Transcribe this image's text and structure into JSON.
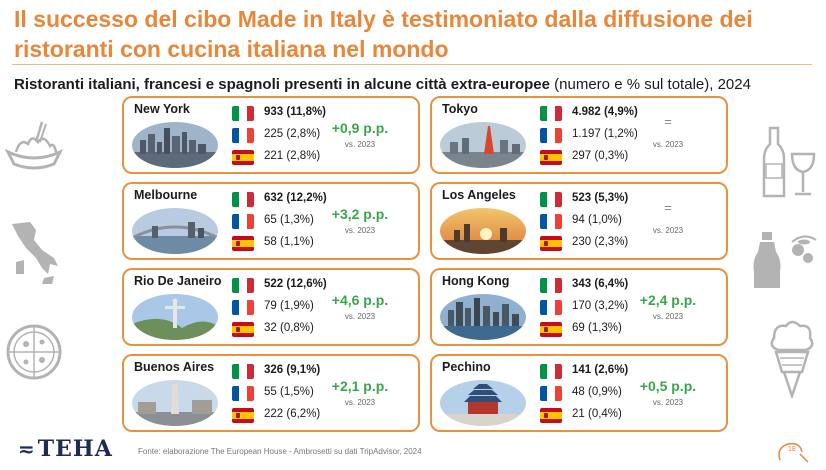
{
  "header": {
    "title": "Il successo del cibo Made in Italy è testimoniato dalla diffusione dei ristoranti con cucina italiana nel mondo",
    "subtitle_bold": "Ristoranti italiani, francesi e spagnoli presenti in alcune città extra-europee",
    "subtitle_rest": " (numero e % sul totale), 2024"
  },
  "vs_label": "vs. 2023",
  "colors": {
    "accent": "#e8873a",
    "positive": "#3aa64a",
    "neutral": "#888888"
  },
  "cities": [
    {
      "name": "New York",
      "it": "933 (11,8%)",
      "fr": "225 (2,8%)",
      "es": "221 (2,8%)",
      "delta": "+0,9 p.p.",
      "photo": "skyline"
    },
    {
      "name": "Melbourne",
      "it": "632 (12,2%)",
      "fr": "65 (1,3%)",
      "es": "58 (1,1%)",
      "delta": "+3,2 p.p.",
      "photo": "harbour"
    },
    {
      "name": "Rio De Janeiro",
      "it": "522 (12,6%)",
      "fr": "79 (1,9%)",
      "es": "32 (0,8%)",
      "delta": "+4,6 p.p.",
      "photo": "statue"
    },
    {
      "name": "Buenos Aires",
      "it": "326 (9,1%)",
      "fr": "55 (1,5%)",
      "es": "222 (6,2%)",
      "delta": "+2,1 p.p.",
      "photo": "obelisk"
    },
    {
      "name": "Tokyo",
      "it": "4.982 (4,9%)",
      "fr": "1.197 (1,2%)",
      "es": "297 (0,3%)",
      "delta": "=",
      "photo": "tower"
    },
    {
      "name": "Los Angeles",
      "it": "523 (5,3%)",
      "fr": "94 (1,0%)",
      "es": "230 (2,3%)",
      "delta": "=",
      "photo": "sunset"
    },
    {
      "name": "Hong Kong",
      "it": "343 (6,4%)",
      "fr": "170 (3,2%)",
      "es": "69 (1,3%)",
      "delta": "+2,4 p.p.",
      "photo": "bay"
    },
    {
      "name": "Pechino",
      "it": "141 (2,6%)",
      "fr": "48 (0,9%)",
      "es": "21 (0,4%)",
      "delta": "+0,5 p.p.",
      "photo": "temple"
    }
  ],
  "icons": [
    "pasta-icon",
    "italy-map-icon",
    "pizza-icon",
    "wine-icon",
    "olive-oil-icon",
    "gelato-icon"
  ],
  "footer": {
    "logo": "TEHA",
    "source": "Fonte: elaborazione The European House - Ambrosetti su dati TripAdvisor, 2024",
    "page": "18"
  }
}
